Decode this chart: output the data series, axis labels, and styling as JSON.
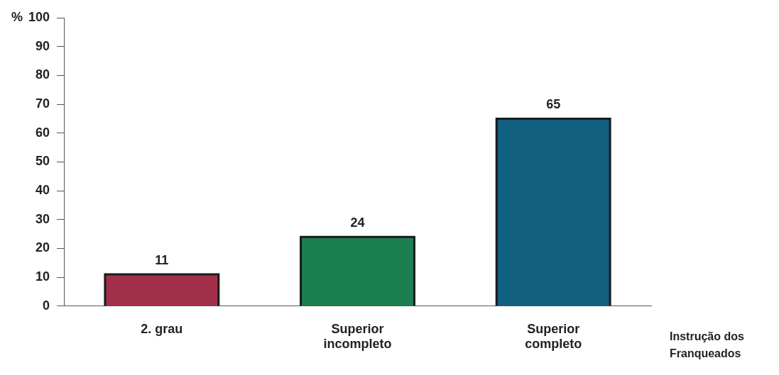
{
  "chart_data": {
    "type": "bar",
    "ylabel": "%",
    "xlabel": "Instrução dos\nFranqueados",
    "categories": [
      "2. grau",
      "Superior\nincompleto",
      "Superior\ncompleto"
    ],
    "values": [
      11,
      24,
      65
    ],
    "colors": [
      "#a3304a",
      "#1c7f4f",
      "#11607f"
    ],
    "ylim": [
      0,
      100
    ],
    "yticks": [
      0,
      10,
      20,
      30,
      40,
      50,
      60,
      70,
      80,
      90,
      100
    ],
    "data_labels": true,
    "grid": false,
    "legend": false
  }
}
